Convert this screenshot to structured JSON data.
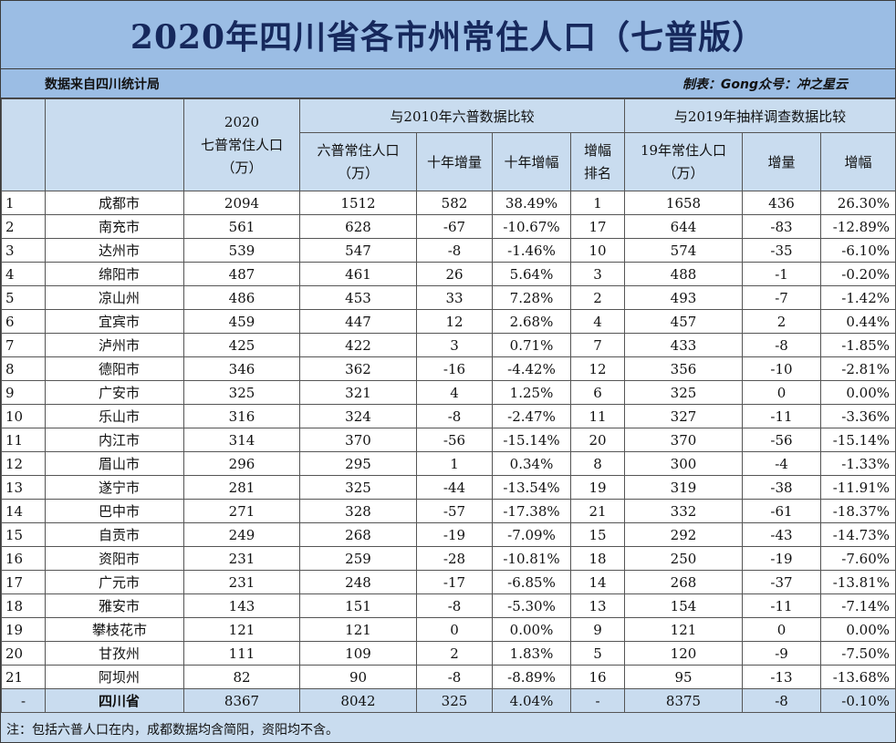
{
  "title": "2020年四川省各市州常住人口（七普版）",
  "source": "数据来自四川统计局",
  "credit": "制表：Gong众号：冲之星云",
  "headers": {
    "census2020_line1": "2020",
    "census2020_line2": "七普常住人口",
    "census2020_line3": "（万）",
    "group_2010": "与2010年六普数据比较",
    "census2010_line1": "六普常住人口",
    "census2010_line2": "（万）",
    "decade_change": "十年增量",
    "decade_growth": "十年增幅",
    "growth_rank_line1": "增幅",
    "growth_rank_line2": "排名",
    "group_2019": "与2019年抽样调查数据比较",
    "pop2019_line1": "19年常住人口",
    "pop2019_line2": "（万）",
    "change_2019": "增量",
    "growth_2019": "增幅"
  },
  "rows": [
    {
      "rank": "1",
      "city": "成都市",
      "p2020": "2094",
      "p2010": "1512",
      "d10": "582",
      "g10": "38.49%",
      "gr": "1",
      "p2019": "1658",
      "d19": "436",
      "g19": "26.30%"
    },
    {
      "rank": "2",
      "city": "南充市",
      "p2020": "561",
      "p2010": "628",
      "d10": "-67",
      "g10": "-10.67%",
      "gr": "17",
      "p2019": "644",
      "d19": "-83",
      "g19": "-12.89%"
    },
    {
      "rank": "3",
      "city": "达州市",
      "p2020": "539",
      "p2010": "547",
      "d10": "-8",
      "g10": "-1.46%",
      "gr": "10",
      "p2019": "574",
      "d19": "-35",
      "g19": "-6.10%"
    },
    {
      "rank": "4",
      "city": "绵阳市",
      "p2020": "487",
      "p2010": "461",
      "d10": "26",
      "g10": "5.64%",
      "gr": "3",
      "p2019": "488",
      "d19": "-1",
      "g19": "-0.20%"
    },
    {
      "rank": "5",
      "city": "凉山州",
      "p2020": "486",
      "p2010": "453",
      "d10": "33",
      "g10": "7.28%",
      "gr": "2",
      "p2019": "493",
      "d19": "-7",
      "g19": "-1.42%"
    },
    {
      "rank": "6",
      "city": "宜宾市",
      "p2020": "459",
      "p2010": "447",
      "d10": "12",
      "g10": "2.68%",
      "gr": "4",
      "p2019": "457",
      "d19": "2",
      "g19": "0.44%"
    },
    {
      "rank": "7",
      "city": "泸州市",
      "p2020": "425",
      "p2010": "422",
      "d10": "3",
      "g10": "0.71%",
      "gr": "7",
      "p2019": "433",
      "d19": "-8",
      "g19": "-1.85%"
    },
    {
      "rank": "8",
      "city": "德阳市",
      "p2020": "346",
      "p2010": "362",
      "d10": "-16",
      "g10": "-4.42%",
      "gr": "12",
      "p2019": "356",
      "d19": "-10",
      "g19": "-2.81%"
    },
    {
      "rank": "9",
      "city": "广安市",
      "p2020": "325",
      "p2010": "321",
      "d10": "4",
      "g10": "1.25%",
      "gr": "6",
      "p2019": "325",
      "d19": "0",
      "g19": "0.00%"
    },
    {
      "rank": "10",
      "city": "乐山市",
      "p2020": "316",
      "p2010": "324",
      "d10": "-8",
      "g10": "-2.47%",
      "gr": "11",
      "p2019": "327",
      "d19": "-11",
      "g19": "-3.36%"
    },
    {
      "rank": "11",
      "city": "内江市",
      "p2020": "314",
      "p2010": "370",
      "d10": "-56",
      "g10": "-15.14%",
      "gr": "20",
      "p2019": "370",
      "d19": "-56",
      "g19": "-15.14%"
    },
    {
      "rank": "12",
      "city": "眉山市",
      "p2020": "296",
      "p2010": "295",
      "d10": "1",
      "g10": "0.34%",
      "gr": "8",
      "p2019": "300",
      "d19": "-4",
      "g19": "-1.33%"
    },
    {
      "rank": "13",
      "city": "遂宁市",
      "p2020": "281",
      "p2010": "325",
      "d10": "-44",
      "g10": "-13.54%",
      "gr": "19",
      "p2019": "319",
      "d19": "-38",
      "g19": "-11.91%"
    },
    {
      "rank": "14",
      "city": "巴中市",
      "p2020": "271",
      "p2010": "328",
      "d10": "-57",
      "g10": "-17.38%",
      "gr": "21",
      "p2019": "332",
      "d19": "-61",
      "g19": "-18.37%"
    },
    {
      "rank": "15",
      "city": "自贡市",
      "p2020": "249",
      "p2010": "268",
      "d10": "-19",
      "g10": "-7.09%",
      "gr": "15",
      "p2019": "292",
      "d19": "-43",
      "g19": "-14.73%"
    },
    {
      "rank": "16",
      "city": "资阳市",
      "p2020": "231",
      "p2010": "259",
      "d10": "-28",
      "g10": "-10.81%",
      "gr": "18",
      "p2019": "250",
      "d19": "-19",
      "g19": "-7.60%"
    },
    {
      "rank": "17",
      "city": "广元市",
      "p2020": "231",
      "p2010": "248",
      "d10": "-17",
      "g10": "-6.85%",
      "gr": "14",
      "p2019": "268",
      "d19": "-37",
      "g19": "-13.81%"
    },
    {
      "rank": "18",
      "city": "雅安市",
      "p2020": "143",
      "p2010": "151",
      "d10": "-8",
      "g10": "-5.30%",
      "gr": "13",
      "p2019": "154",
      "d19": "-11",
      "g19": "-7.14%"
    },
    {
      "rank": "19",
      "city": "攀枝花市",
      "p2020": "121",
      "p2010": "121",
      "d10": "0",
      "g10": "0.00%",
      "gr": "9",
      "p2019": "121",
      "d19": "0",
      "g19": "0.00%"
    },
    {
      "rank": "20",
      "city": "甘孜州",
      "p2020": "111",
      "p2010": "109",
      "d10": "2",
      "g10": "1.83%",
      "gr": "5",
      "p2019": "120",
      "d19": "-9",
      "g19": "-7.50%"
    },
    {
      "rank": "21",
      "city": "阿坝州",
      "p2020": "82",
      "p2010": "90",
      "d10": "-8",
      "g10": "-8.89%",
      "gr": "16",
      "p2019": "95",
      "d19": "-13",
      "g19": "-13.68%"
    }
  ],
  "total": {
    "rank": "-",
    "city": "四川省",
    "p2020": "8367",
    "p2010": "8042",
    "d10": "325",
    "g10": "4.04%",
    "gr": "-",
    "p2019": "8375",
    "d19": "-8",
    "g19": "-0.10%"
  },
  "note": "注：包括六普人口在内，成都数据均含简阳，资阳均不含。"
}
